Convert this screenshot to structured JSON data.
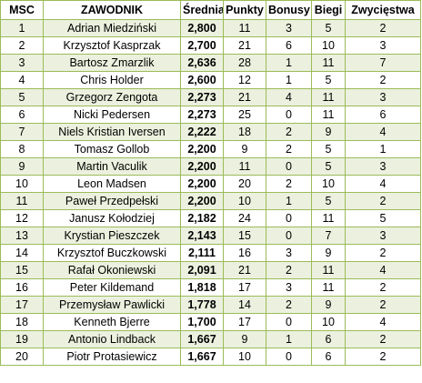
{
  "colors": {
    "border": "#9bbb59",
    "stripe": "#ebf1de",
    "background": "#ffffff"
  },
  "headers": [
    "MSC",
    "ZAWODNIK",
    "Średnia",
    "Punkty",
    "Bonusy",
    "Biegi",
    "Zwycięstwa"
  ],
  "rows": [
    [
      "1",
      "Adrian Miedziński",
      "2,800",
      "11",
      "3",
      "5",
      "2"
    ],
    [
      "2",
      "Krzysztof Kasprzak",
      "2,700",
      "21",
      "6",
      "10",
      "3"
    ],
    [
      "3",
      "Bartosz Zmarzlik",
      "2,636",
      "28",
      "1",
      "11",
      "7"
    ],
    [
      "4",
      "Chris Holder",
      "2,600",
      "12",
      "1",
      "5",
      "2"
    ],
    [
      "5",
      "Grzegorz Zengota",
      "2,273",
      "21",
      "4",
      "11",
      "3"
    ],
    [
      "6",
      "Nicki Pedersen",
      "2,273",
      "25",
      "0",
      "11",
      "6"
    ],
    [
      "7",
      "Niels Kristian Iversen",
      "2,222",
      "18",
      "2",
      "9",
      "4"
    ],
    [
      "8",
      "Tomasz Gollob",
      "2,200",
      "9",
      "2",
      "5",
      "1"
    ],
    [
      "9",
      "Martin Vaculik",
      "2,200",
      "11",
      "0",
      "5",
      "3"
    ],
    [
      "10",
      "Leon Madsen",
      "2,200",
      "20",
      "2",
      "10",
      "4"
    ],
    [
      "11",
      "Paweł Przedpełski",
      "2,200",
      "10",
      "1",
      "5",
      "2"
    ],
    [
      "12",
      "Janusz Kołodziej",
      "2,182",
      "24",
      "0",
      "11",
      "5"
    ],
    [
      "13",
      "Krystian Pieszczek",
      "2,143",
      "15",
      "0",
      "7",
      "3"
    ],
    [
      "14",
      "Krzysztof Buczkowski",
      "2,111",
      "16",
      "3",
      "9",
      "2"
    ],
    [
      "15",
      "Rafał Okoniewski",
      "2,091",
      "21",
      "2",
      "11",
      "4"
    ],
    [
      "16",
      "Peter Kildemand",
      "1,818",
      "17",
      "3",
      "11",
      "2"
    ],
    [
      "17",
      "Przemysław Pawlicki",
      "1,778",
      "14",
      "2",
      "9",
      "2"
    ],
    [
      "18",
      "Kenneth Bjerre",
      "1,700",
      "17",
      "0",
      "10",
      "4"
    ],
    [
      "19",
      "Antonio Lindback",
      "1,667",
      "9",
      "1",
      "6",
      "2"
    ],
    [
      "20",
      "Piotr Protasiewicz",
      "1,667",
      "10",
      "0",
      "6",
      "2"
    ]
  ]
}
